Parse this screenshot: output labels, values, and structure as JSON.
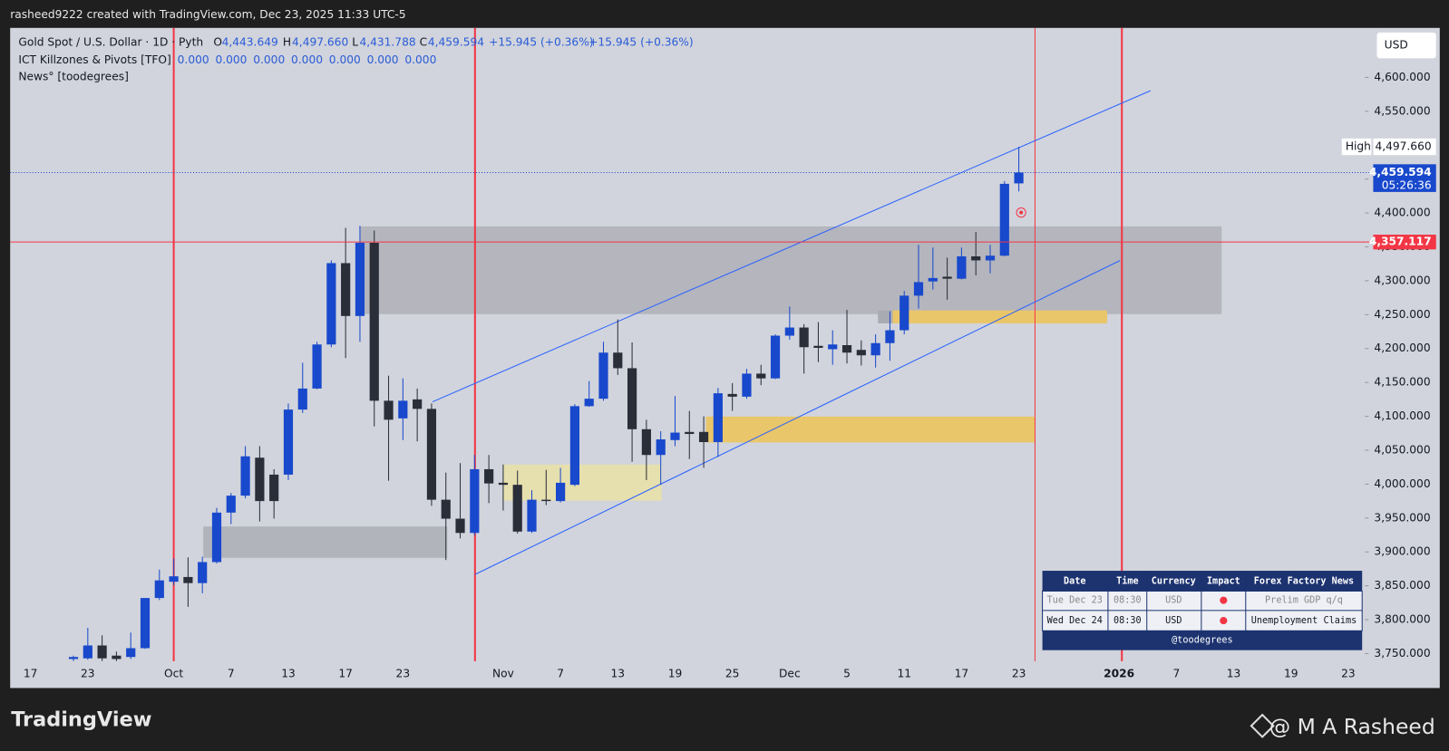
{
  "header": "rasheed9222 created with TradingView.com, Dec 23, 2025 11:33 UTC-5",
  "legend": {
    "symbol": "Gold Spot / U.S. Dollar · 1D · Pyth",
    "fields": [
      {
        "key": "O",
        "text": "4,443.649"
      },
      {
        "key": "H",
        "text": "4,497.660"
      },
      {
        "key": "L",
        "text": "4,431.788"
      },
      {
        "key": "C",
        "text": "4,459.594"
      }
    ],
    "changes": [
      "+15.945 (+0.36%)",
      "+15.945 (+0.36%)"
    ],
    "indicator": "ICT Killzones & Pivots [TFO]",
    "indicator_values": [
      "0.000",
      "0.000",
      "0.000",
      "0.000",
      "0.000",
      "0.000",
      "0.000"
    ],
    "news_indicator": "News° [toodegrees]"
  },
  "currency_button": "USD",
  "chart_data": {
    "type": "candlestick",
    "up_color": "#1848cc",
    "down_color": "#2a2e39",
    "categories": [
      "17",
      null,
      null,
      null,
      "23",
      null,
      null,
      null,
      null,
      null,
      "Oct",
      null,
      null,
      null,
      "7",
      null,
      null,
      null,
      "13",
      null,
      null,
      null,
      "17",
      null,
      null,
      null,
      "23",
      null,
      null,
      null,
      null,
      null,
      null,
      "Nov",
      null,
      null,
      null,
      "7",
      null,
      null,
      null,
      "13",
      null,
      null,
      null,
      "19",
      null,
      null,
      null,
      "25",
      null,
      null,
      null,
      "Dec",
      null,
      null,
      null,
      "5",
      null,
      null,
      null,
      "11",
      null,
      null,
      null,
      "17",
      null,
      null,
      null,
      "23",
      null,
      null,
      null,
      null,
      null,
      null,
      "2026",
      null,
      null,
      null,
      "7",
      null,
      null,
      null,
      "13",
      null,
      null,
      null,
      "19",
      null,
      null,
      null,
      "23"
    ],
    "open": [
      null,
      null,
      null,
      3742,
      3743,
      3762,
      3747,
      3745,
      3758,
      3832,
      3856,
      3863,
      3854,
      3885,
      3958,
      3983,
      4039,
      4014,
      4014,
      4110,
      4141,
      4206,
      4326,
      4248,
      4356,
      4123,
      4097,
      4125,
      4111,
      3977,
      3949,
      3928,
      4022,
      4002,
      3999,
      3930,
      3977,
      3975,
      3999,
      4115,
      4126,
      4194,
      4171,
      4081,
      4043,
      4065,
      4077,
      4077,
      4062,
      4133,
      4129,
      4163,
      4156,
      4219,
      4231,
      4204,
      4199,
      4205,
      4198,
      4190,
      4208,
      4227,
      4278,
      4299,
      4306,
      4303,
      4336,
      4330,
      4337,
      4443.649,
      null,
      null,
      null,
      null,
      null,
      null,
      null,
      null,
      null,
      null,
      null,
      null,
      null,
      null,
      null,
      null,
      null,
      null,
      null,
      null,
      null,
      null,
      null
    ],
    "high": [
      null,
      null,
      null,
      3747,
      3788,
      3777,
      3753,
      3781,
      3832,
      3874,
      3890,
      3892,
      3893,
      3965,
      3987,
      4056,
      4056,
      4022,
      4119,
      4179,
      4210,
      4330,
      4378,
      4381,
      4374,
      4160,
      4156,
      4141,
      4119,
      4017,
      4031,
      4043,
      4043,
      4029,
      4020,
      3991,
      4021,
      4024,
      4118,
      4152,
      4210,
      4243,
      4209,
      4095,
      4078,
      4130,
      4108,
      4100,
      4142,
      4149,
      4170,
      4176,
      4221,
      4262,
      4236,
      4239,
      4227,
      4257,
      4212,
      4221,
      4255,
      4285,
      4353,
      4349,
      4334,
      4349,
      4372,
      4353,
      4447,
      4497.66,
      null,
      null,
      null,
      null,
      null,
      null,
      null,
      null,
      null,
      null,
      null,
      null,
      null,
      null,
      null,
      null,
      null,
      null,
      null,
      null,
      null,
      null,
      null
    ],
    "low": [
      null,
      null,
      null,
      3739,
      3741,
      3739,
      3739,
      3742,
      3757,
      3829,
      3851,
      3819,
      3839,
      3883,
      3941,
      3979,
      3945,
      3949,
      4006,
      4105,
      4140,
      4202,
      4186,
      4210,
      4085,
      4005,
      4065,
      4063,
      3968,
      3888,
      3920,
      3924,
      3972,
      3961,
      3927,
      3928,
      3969,
      3973,
      3997,
      4114,
      4123,
      4161,
      4033,
      4006,
      3999,
      4056,
      4037,
      4024,
      4040,
      4108,
      4126,
      4146,
      4155,
      4213,
      4163,
      4180,
      4176,
      4178,
      4175,
      4172,
      4182,
      4221,
      4259,
      4287,
      4272,
      4302,
      4308,
      4311,
      4336,
      4431.788,
      null,
      null,
      null,
      null,
      null,
      null,
      null,
      null,
      null,
      null,
      null,
      null,
      null,
      null,
      null,
      null,
      null,
      null,
      null,
      null,
      null,
      null,
      null
    ],
    "close": [
      null,
      null,
      null,
      3745,
      3762,
      3743,
      3742,
      3758,
      3832,
      3858,
      3864,
      3854,
      3885,
      3958,
      3983,
      4041,
      3975,
      3975,
      4110,
      4141,
      4206,
      4326,
      4248,
      4356,
      4123,
      4095,
      4123,
      4111,
      3977,
      3949,
      3928,
      4022,
      4001,
      3999,
      3930,
      3977,
      3975,
      4002,
      4115,
      4126,
      4194,
      4171,
      4081,
      4043,
      4066,
      4076,
      4074,
      4062,
      4134,
      4129,
      4163,
      4156,
      4219,
      4231,
      4202,
      4201,
      4206,
      4194,
      4190,
      4208,
      4227,
      4278,
      4298,
      4304,
      4303,
      4336,
      4330,
      4337,
      4443,
      4459.594,
      null,
      null,
      null,
      null,
      null,
      null,
      null,
      null,
      null,
      null,
      null,
      null,
      null,
      null,
      null,
      null,
      null,
      null,
      null,
      null,
      null,
      null,
      null
    ],
    "ylim": [
      3736,
      4673
    ],
    "yticks": [
      {
        "value": 3750,
        "label": "3,750.000"
      },
      {
        "value": 3800,
        "label": "3,800.000"
      },
      {
        "value": 3850,
        "label": "3,850.000"
      },
      {
        "value": 3900,
        "label": "3,900.000"
      },
      {
        "value": 3950,
        "label": "3,950.000"
      },
      {
        "value": 4000,
        "label": "4,000.000"
      },
      {
        "value": 4050,
        "label": "4,050.000"
      },
      {
        "value": 4100,
        "label": "4,100.000"
      },
      {
        "value": 4150,
        "label": "4,150.000"
      },
      {
        "value": 4200,
        "label": "4,200.000"
      },
      {
        "value": 4250,
        "label": "4,250.000"
      },
      {
        "value": 4300,
        "label": "4,300.000"
      },
      {
        "value": 4350,
        "label": "4,350.000"
      },
      {
        "value": 4400,
        "label": "4,400.000"
      },
      {
        "value": 4450,
        "label": "4,450.000"
      },
      {
        "value": 4500,
        "label": "4,500.000"
      },
      {
        "value": 4550,
        "label": "4,550.000"
      },
      {
        "value": 4600,
        "label": "4,600.000"
      }
    ],
    "grid": false,
    "price_line": {
      "value": 4357.117,
      "label": "4,357.117",
      "color": "#f23645"
    },
    "high_marker": {
      "text": "High",
      "value": 4497.66,
      "label": "4,497.660"
    },
    "last_price": {
      "value": 4459.594,
      "label": "4,459.594",
      "countdown": "05:26:36",
      "color": "#1848cc"
    }
  },
  "news_table": {
    "headers": [
      "Date",
      "Time",
      "Currency",
      "Impact",
      "Forex Factory News"
    ],
    "rows": [
      {
        "date": "Tue Dec 23",
        "time": "08:30",
        "currency": "USD",
        "news": "Prelim GDP q/q"
      },
      {
        "date": "Wed Dec 24",
        "time": "08:30",
        "currency": "USD",
        "news": "Unemployment Claims"
      }
    ],
    "footer": "@toodegrees"
  },
  "footer": {
    "brand": "TradingView",
    "author": "@ M A Rasheed"
  }
}
